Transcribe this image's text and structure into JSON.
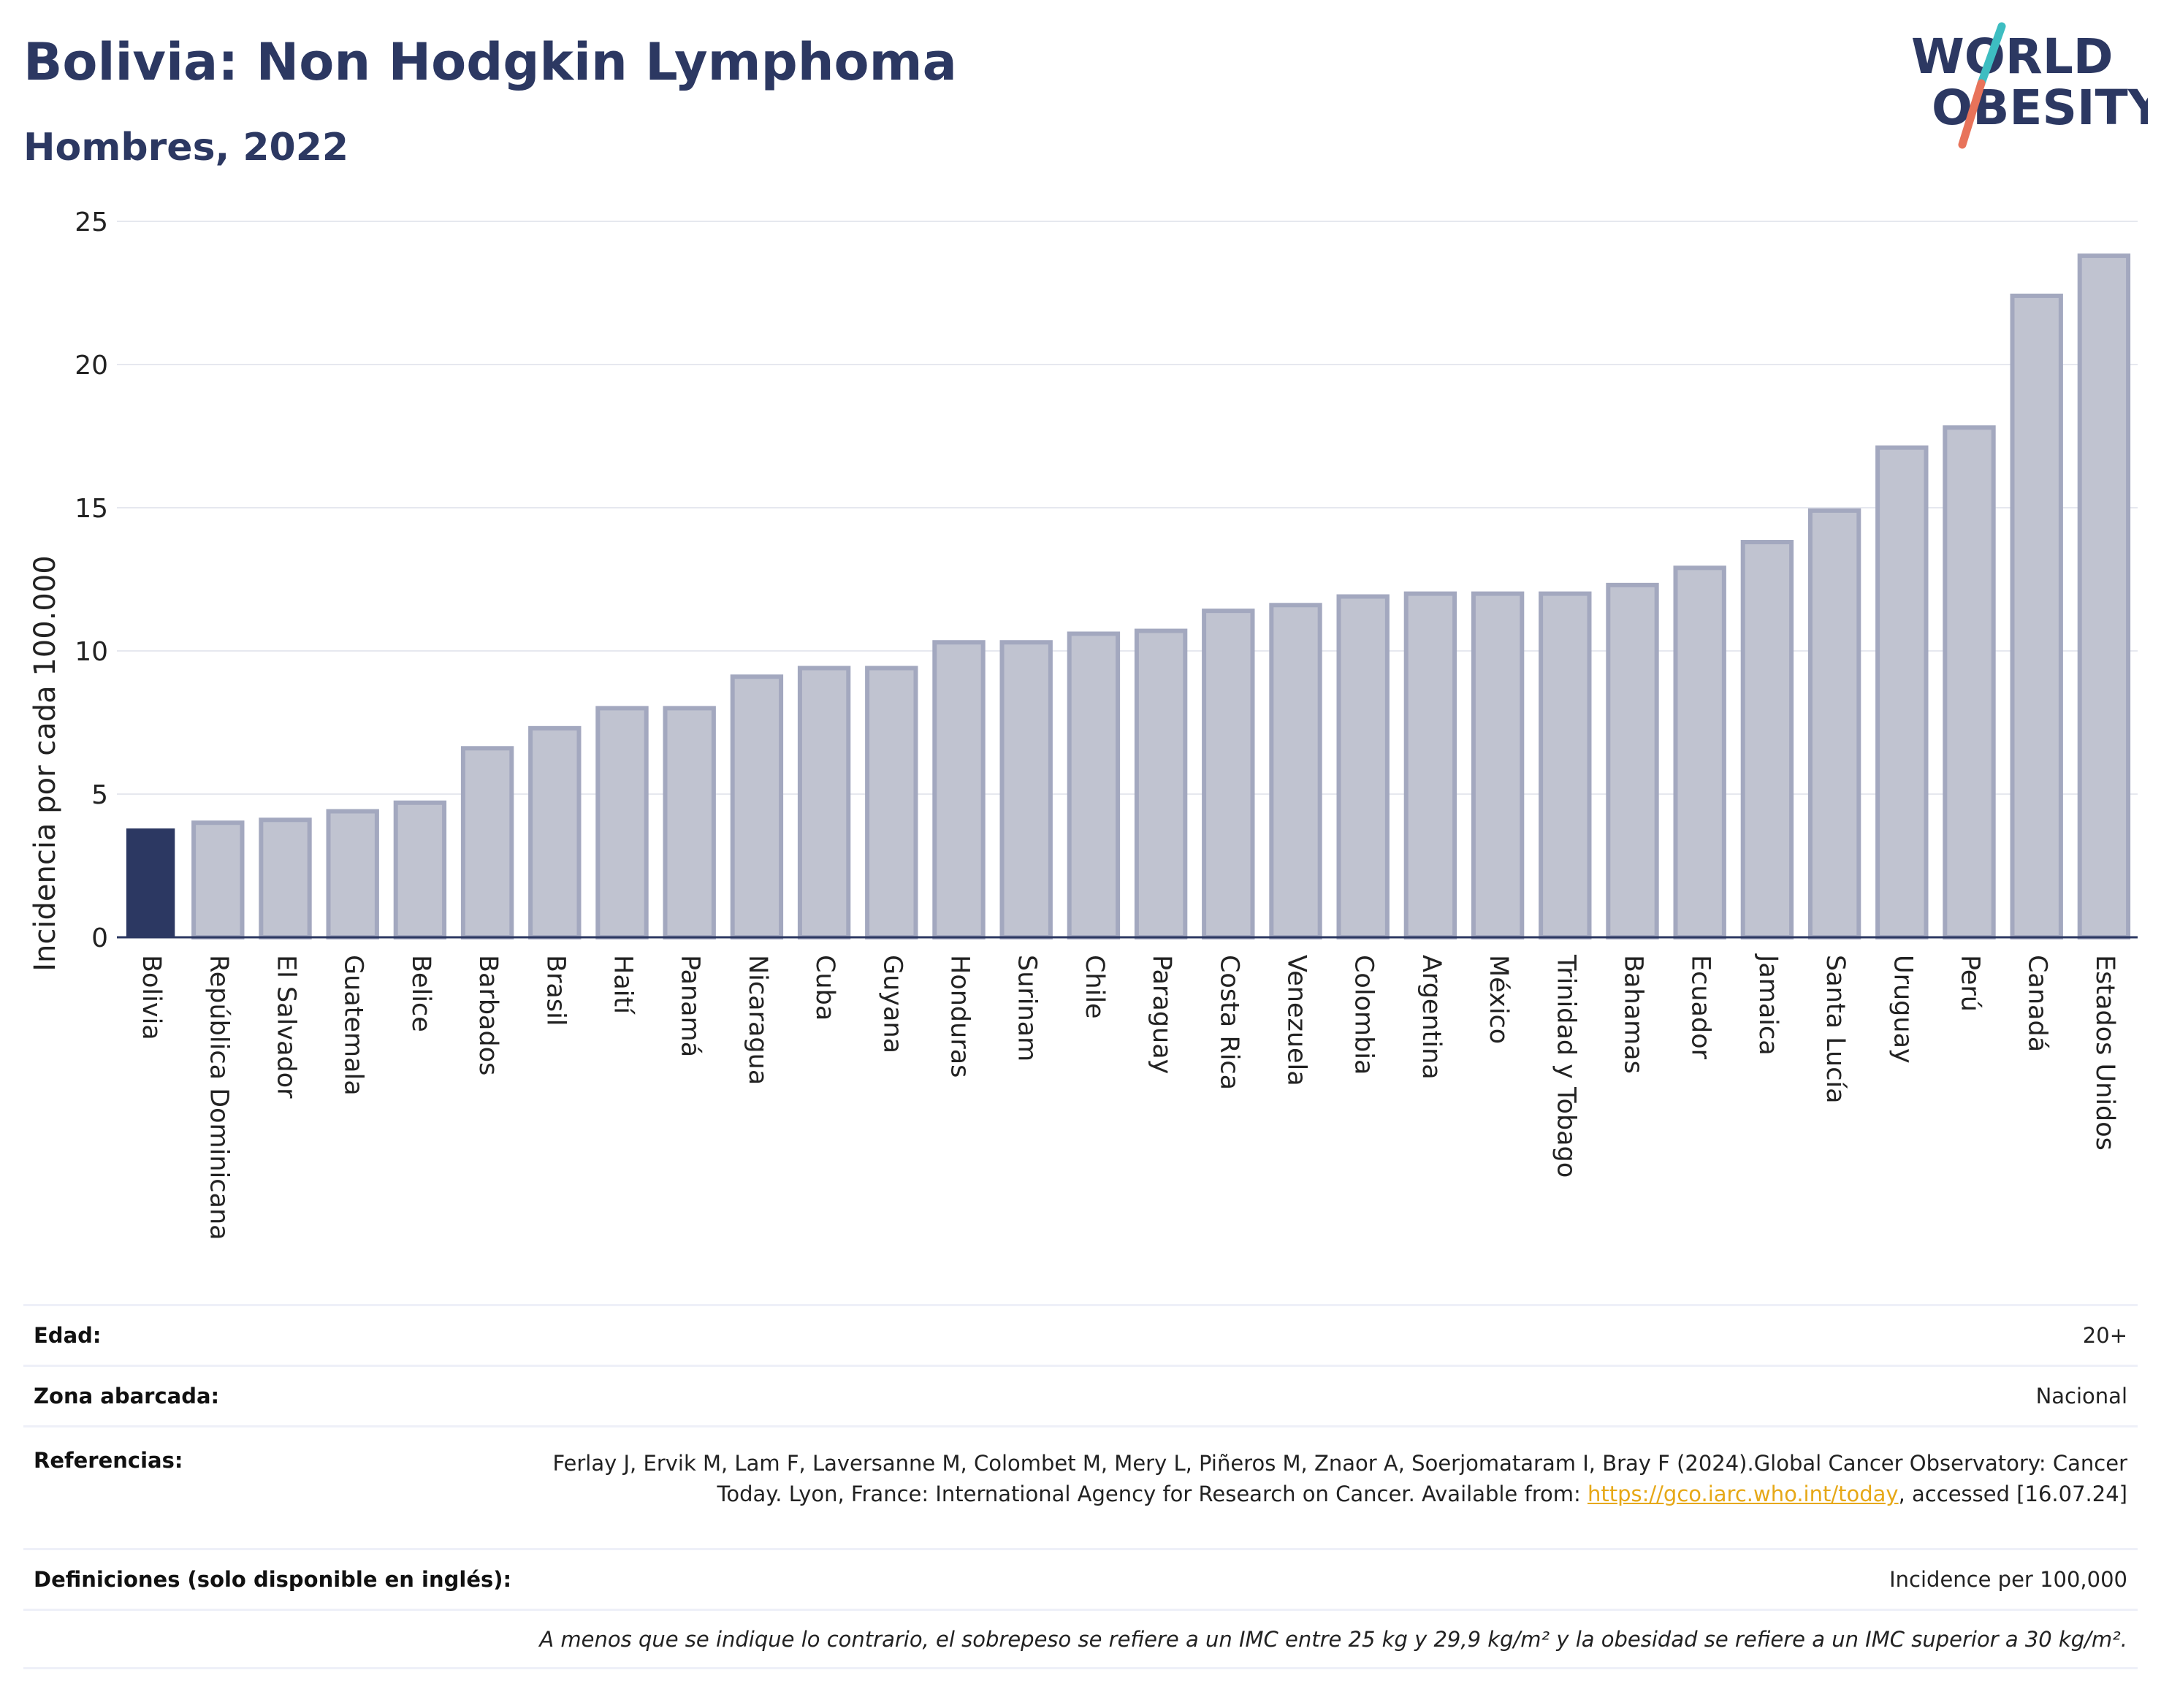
{
  "header": {
    "title": "Bolivia: Non Hodgkin Lymphoma",
    "subtitle": "Hombres, 2022"
  },
  "logo": {
    "line1": "WORLD",
    "line2": "OBESITY",
    "accent_colors": [
      "#e8735a",
      "#3dbdc1"
    ],
    "text_color": "#2c3862"
  },
  "colors": {
    "highlight_bar": "#2c3862",
    "other_bars": "#c0c3d0",
    "bar_outline": "#a3a8bf",
    "title": "#2c3862"
  },
  "chart_data": {
    "type": "bar",
    "title": "Bolivia: Non Hodgkin Lymphoma",
    "subtitle": "Hombres, 2022",
    "xlabel": "",
    "ylabel": "Incidencia por cada 100.000",
    "ylim": [
      0,
      25
    ],
    "yticks": [
      0,
      5,
      10,
      15,
      20,
      25
    ],
    "grid": true,
    "highlight": "Bolivia",
    "categories": [
      "Bolivia",
      "República Dominicana",
      "El Salvador",
      "Guatemala",
      "Belice",
      "Barbados",
      "Brasil",
      "Haití",
      "Panamá",
      "Nicaragua",
      "Cuba",
      "Guyana",
      "Honduras",
      "Surinam",
      "Chile",
      "Paraguay",
      "Costa Rica",
      "Venezuela",
      "Colombia",
      "Argentina",
      "México",
      "Trinidad y Tobago",
      "Bahamas",
      "Ecuador",
      "Jamaica",
      "Santa Lucía",
      "Uruguay",
      "Perú",
      "Canadá",
      "Estados Unidos"
    ],
    "values": [
      3.8,
      4.0,
      4.1,
      4.4,
      4.7,
      6.6,
      7.3,
      8.0,
      8.0,
      9.1,
      9.4,
      9.4,
      10.3,
      10.3,
      10.6,
      10.7,
      11.4,
      11.6,
      11.9,
      12.0,
      12.0,
      12.0,
      12.3,
      12.9,
      13.8,
      14.9,
      17.1,
      17.8,
      22.4,
      23.8
    ]
  },
  "info": {
    "edad_label": "Edad:",
    "edad_value": "20+",
    "zona_label": "Zona abarcada:",
    "zona_value": "Nacional",
    "ref_label": "Referencias:",
    "ref_text_1": "Ferlay J, Ervik M, Lam F, Laversanne M, Colombet M, Mery L, Piñeros M, Znaor A, Soerjomataram I, Bray F (2024).Global Cancer Observatory: Cancer Today. Lyon, France: International Agency for Research on Cancer. Available from: ",
    "ref_link": "https://gco.iarc.who.int/today",
    "ref_text_2": ", accessed [16.07.24]",
    "def_label": "Definiciones (solo disponible en inglés):",
    "def_value": "Incidence per 100,000",
    "note": "A menos que se indique lo contrario, el sobrepeso se refiere a un IMC entre 25 kg y 29,9 kg/m² y la obesidad se refiere a un IMC superior a 30 kg/m²."
  }
}
